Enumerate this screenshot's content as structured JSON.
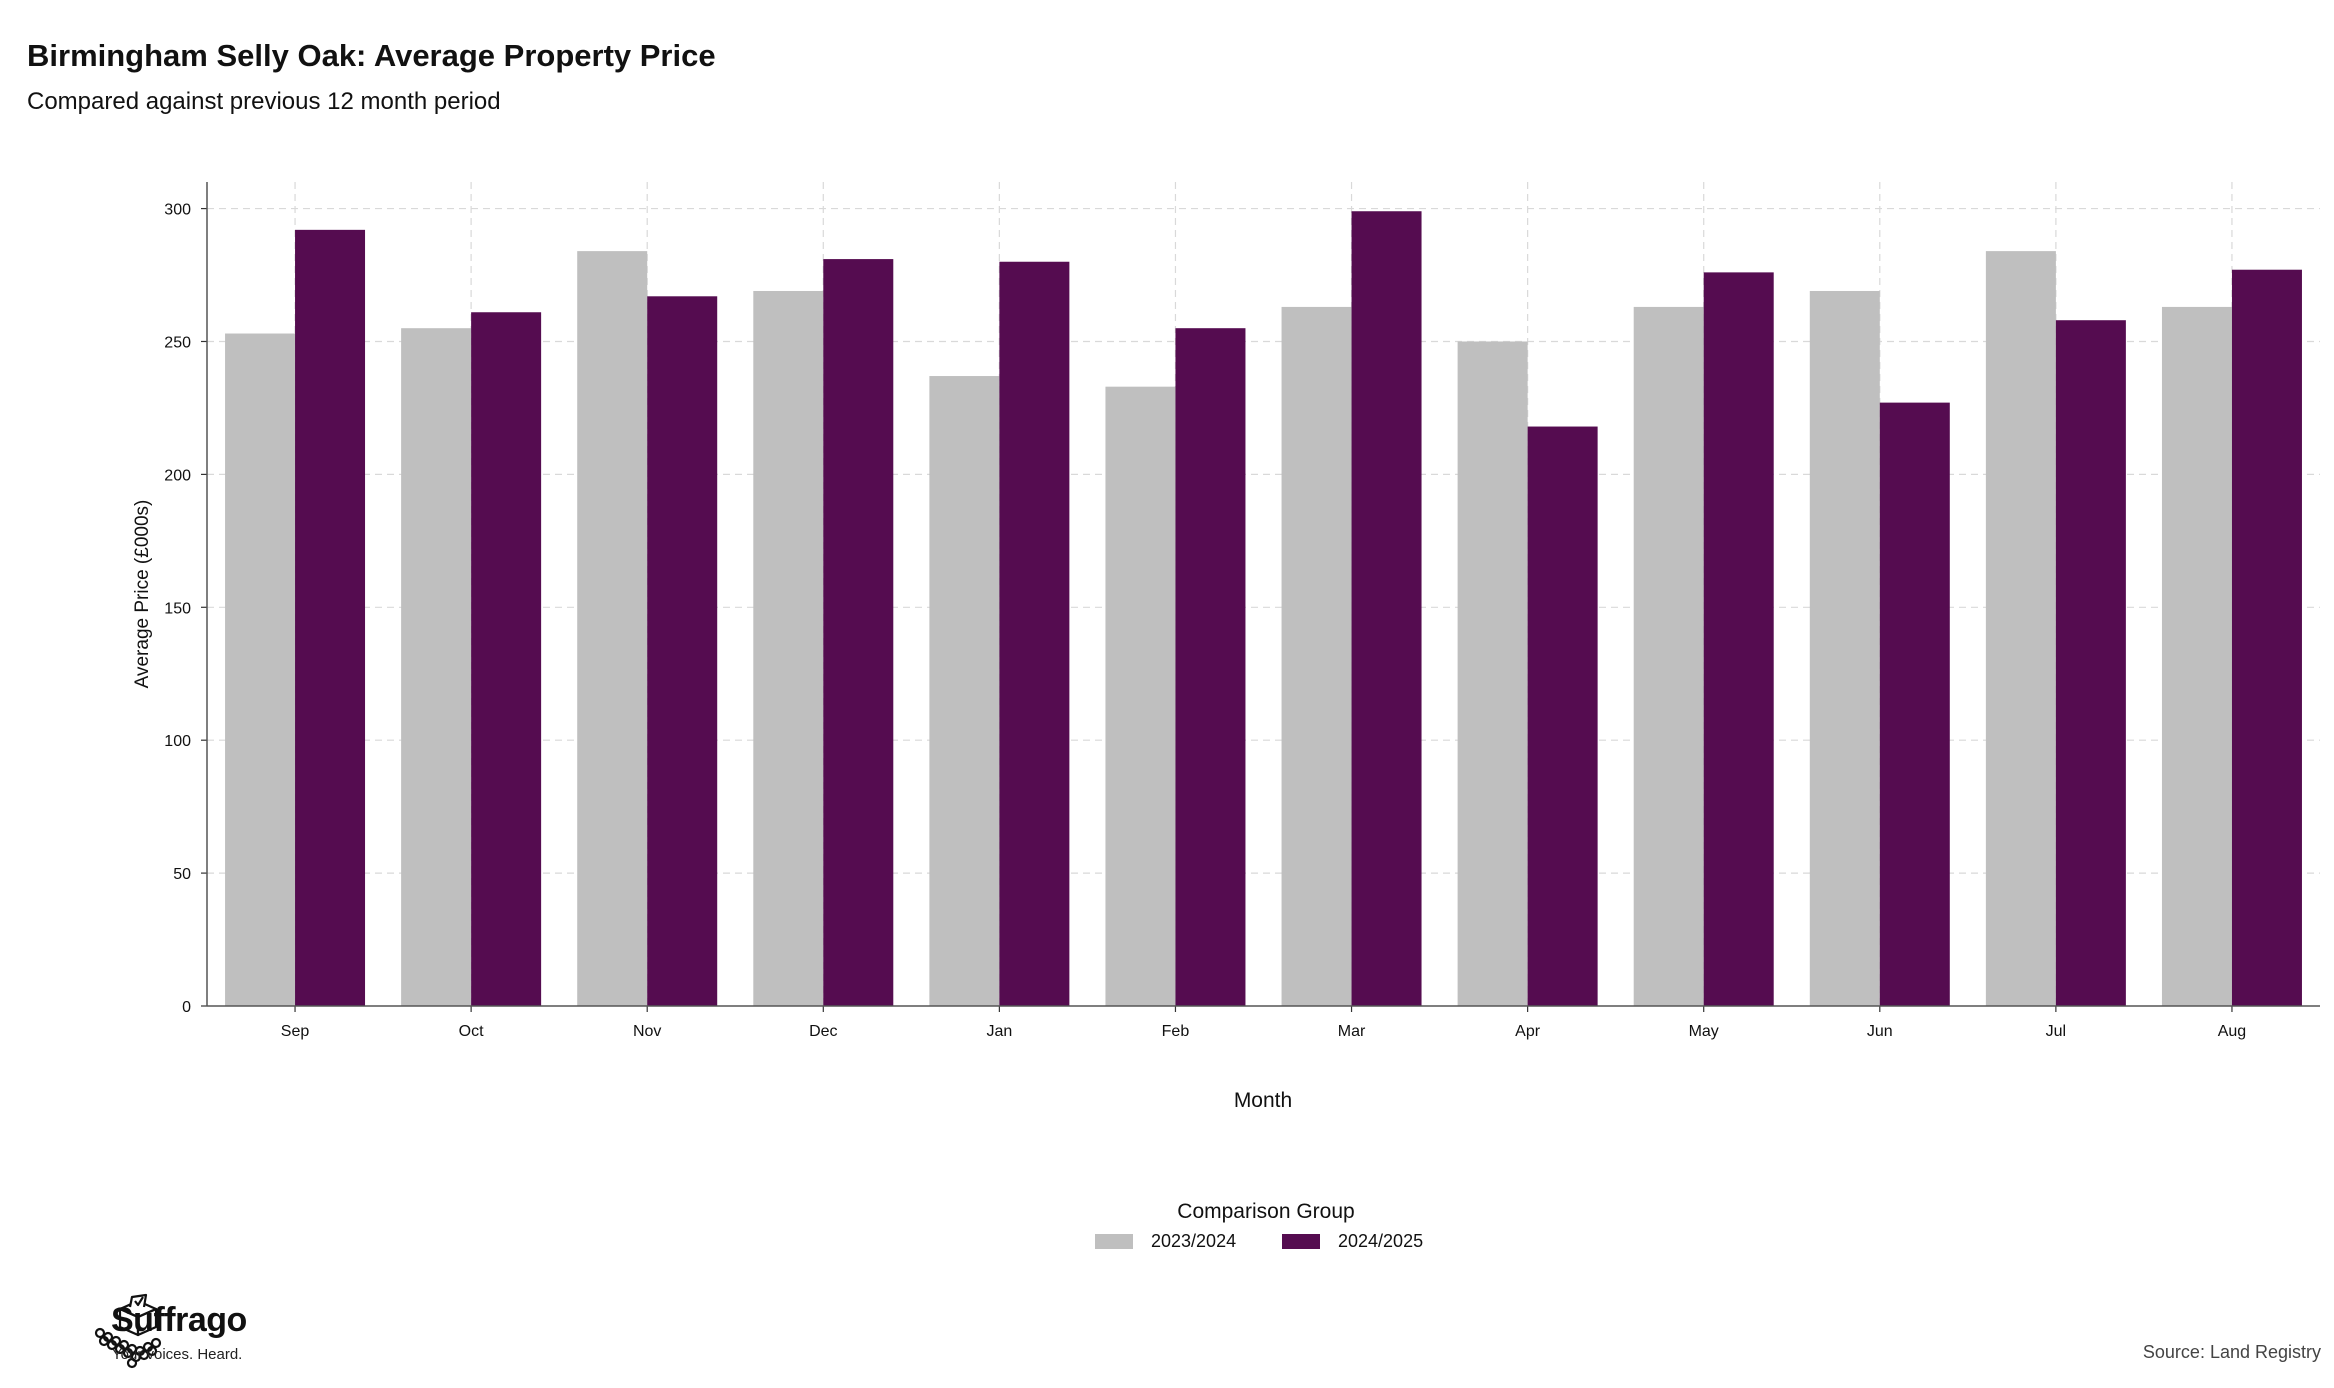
{
  "chart_data": {
    "type": "bar",
    "title": "Birmingham Selly Oak: Average Property Price",
    "subtitle": "Compared against previous 12 month period",
    "xlabel": "Month",
    "ylabel": "Average Price (£000s)",
    "ylim": [
      0,
      310
    ],
    "yticks": [
      0,
      50,
      100,
      150,
      200,
      250,
      300
    ],
    "grid": true,
    "legend_title": "Comparison Group",
    "legend_position": "bottom",
    "categories": [
      "Sep",
      "Oct",
      "Nov",
      "Dec",
      "Jan",
      "Feb",
      "Mar",
      "Apr",
      "May",
      "Jun",
      "Jul",
      "Aug"
    ],
    "series": [
      {
        "name": "2023/2024",
        "color": "#bfbfbf",
        "values": [
          253,
          255,
          284,
          269,
          237,
          233,
          263,
          250,
          263,
          269,
          284,
          263
        ]
      },
      {
        "name": "2024/2025",
        "color": "#550c50",
        "values": [
          292,
          261,
          267,
          281,
          280,
          255,
          299,
          218,
          276,
          227,
          258,
          277
        ]
      }
    ]
  },
  "brand": {
    "name": "Suffrago",
    "tagline": "Your voices. Heard.",
    "logo_icon": "ballot-box-icon"
  },
  "source": "Source: Land Registry"
}
